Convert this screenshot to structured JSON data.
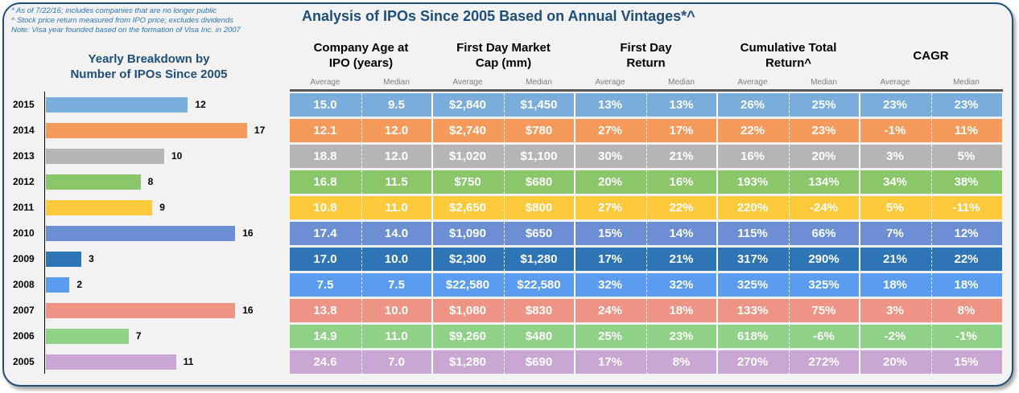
{
  "notes": [
    "* As of 7/22/16; includes companies that are no longer public",
    "^ Stock price return measured from IPO price; excludes dividends",
    "Note: Visa year founded based on the formation of Visa Inc. in 2007"
  ],
  "title": "Analysis of IPOs Since 2005 Based on Annual Vintages*^",
  "breakdown_title": [
    "Yearly Breakdown by",
    "Number of IPOs Since 2005"
  ],
  "column_groups": [
    [
      "Company Age at",
      "IPO (years)"
    ],
    [
      "First Day Market",
      "Cap (mm)"
    ],
    [
      "First Day",
      "Return"
    ],
    [
      "Cumulative Total",
      "Return^"
    ],
    [
      "CAGR",
      ""
    ]
  ],
  "sub_headers": [
    "Average",
    "Median"
  ],
  "colors": {
    "frame": "#1f4e79",
    "rows": [
      "#7aaddb",
      "#f59a5a",
      "#b5b5b5",
      "#8ac76a",
      "#ffc93c",
      "#6b8fd2",
      "#2e75b6",
      "#5a9df0",
      "#ee9484",
      "#8fd186",
      "#c9a6d4"
    ]
  },
  "chart_data": {
    "type": "bar",
    "orientation": "horizontal",
    "title": "Yearly Breakdown by Number of IPOs Since 2005",
    "categories": [
      "2015",
      "2014",
      "2013",
      "2012",
      "2011",
      "2010",
      "2009",
      "2008",
      "2007",
      "2006",
      "2005"
    ],
    "values": [
      12,
      17,
      10,
      8,
      9,
      16,
      3,
      2,
      16,
      7,
      11
    ],
    "xlim": [
      0,
      17
    ]
  },
  "table": {
    "rows": [
      [
        "15.0",
        "9.5",
        "$2,840",
        "$1,450",
        "13%",
        "13%",
        "26%",
        "25%",
        "23%",
        "23%"
      ],
      [
        "12.1",
        "12.0",
        "$2,740",
        "$780",
        "27%",
        "17%",
        "22%",
        "23%",
        "-1%",
        "11%"
      ],
      [
        "18.8",
        "12.0",
        "$1,020",
        "$1,100",
        "30%",
        "21%",
        "16%",
        "20%",
        "3%",
        "5%"
      ],
      [
        "16.8",
        "11.5",
        "$750",
        "$680",
        "20%",
        "16%",
        "193%",
        "134%",
        "34%",
        "38%"
      ],
      [
        "10.8",
        "11.0",
        "$2,650",
        "$800",
        "27%",
        "22%",
        "220%",
        "-24%",
        "5%",
        "-11%"
      ],
      [
        "17.4",
        "14.0",
        "$1,090",
        "$650",
        "15%",
        "14%",
        "115%",
        "66%",
        "7%",
        "12%"
      ],
      [
        "17.0",
        "10.0",
        "$2,300",
        "$1,280",
        "17%",
        "21%",
        "317%",
        "290%",
        "21%",
        "22%"
      ],
      [
        "7.5",
        "7.5",
        "$22,580",
        "$22,580",
        "32%",
        "32%",
        "325%",
        "325%",
        "18%",
        "18%"
      ],
      [
        "13.8",
        "10.0",
        "$1,080",
        "$830",
        "24%",
        "18%",
        "133%",
        "75%",
        "3%",
        "8%"
      ],
      [
        "14.9",
        "11.0",
        "$9,260",
        "$480",
        "25%",
        "23%",
        "618%",
        "-6%",
        "-2%",
        "-1%"
      ],
      [
        "24.6",
        "7.0",
        "$1,280",
        "$690",
        "17%",
        "8%",
        "270%",
        "272%",
        "20%",
        "15%"
      ]
    ]
  }
}
